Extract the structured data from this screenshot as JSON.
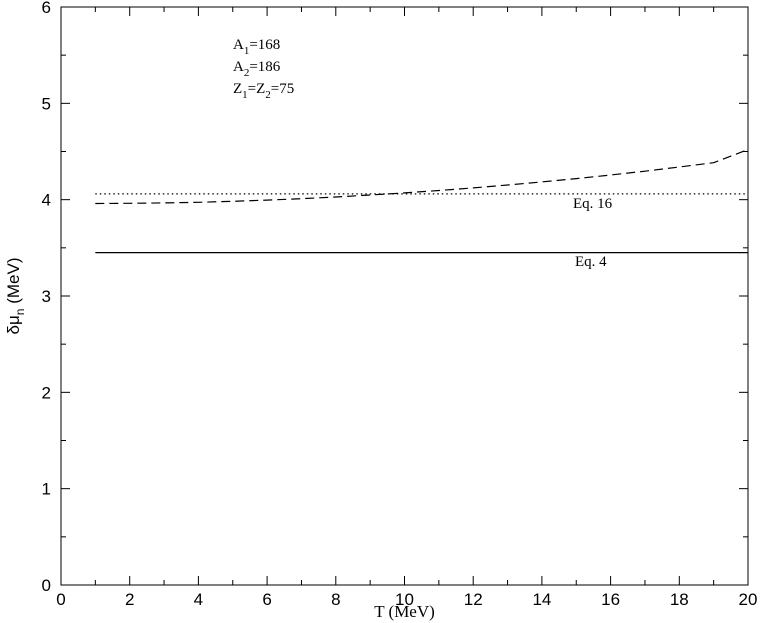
{
  "chart_data": {
    "type": "line",
    "xlabel": "T (MeV)",
    "ylabel": {
      "main": "δμ",
      "sub": "n",
      "unit": " (MeV)"
    },
    "xlim": [
      0,
      20
    ],
    "ylim": [
      0,
      6
    ],
    "x_ticks": [
      0,
      2,
      4,
      6,
      8,
      10,
      12,
      14,
      16,
      18,
      20
    ],
    "y_ticks": [
      0,
      1,
      2,
      3,
      4,
      5,
      6
    ],
    "grid": false,
    "series": [
      {
        "style": "solid",
        "x": [
          1,
          20
        ],
        "y": [
          3.45,
          3.45
        ]
      },
      {
        "style": "dotted",
        "x": [
          1,
          20
        ],
        "y": [
          4.06,
          4.06
        ]
      },
      {
        "style": "dashed",
        "x": [
          1,
          2,
          3,
          4,
          5,
          6,
          7,
          8,
          9,
          10,
          11,
          12,
          13,
          14,
          15,
          16,
          17,
          18,
          19,
          20
        ],
        "y": [
          3.96,
          3.962,
          3.966,
          3.973,
          3.983,
          3.995,
          4.01,
          4.028,
          4.048,
          4.07,
          4.095,
          4.122,
          4.152,
          4.184,
          4.219,
          4.256,
          4.296,
          4.339,
          4.384,
          4.52
        ]
      }
    ],
    "annotations": [
      {
        "kind": "params",
        "lines": [
          [
            {
              "t": "A"
            },
            {
              "t": "1",
              "sub": true
            },
            {
              "t": "=168"
            }
          ],
          [
            {
              "t": "A"
            },
            {
              "t": "2",
              "sub": true
            },
            {
              "t": "=186"
            }
          ],
          [
            {
              "t": "Z"
            },
            {
              "t": "1",
              "sub": true
            },
            {
              "t": "=Z"
            },
            {
              "t": "2",
              "sub": true
            },
            {
              "t": "=75"
            }
          ]
        ]
      },
      {
        "kind": "line-label",
        "text": "Eq. 16"
      },
      {
        "kind": "line-label",
        "text": "Eq. 4"
      }
    ]
  }
}
